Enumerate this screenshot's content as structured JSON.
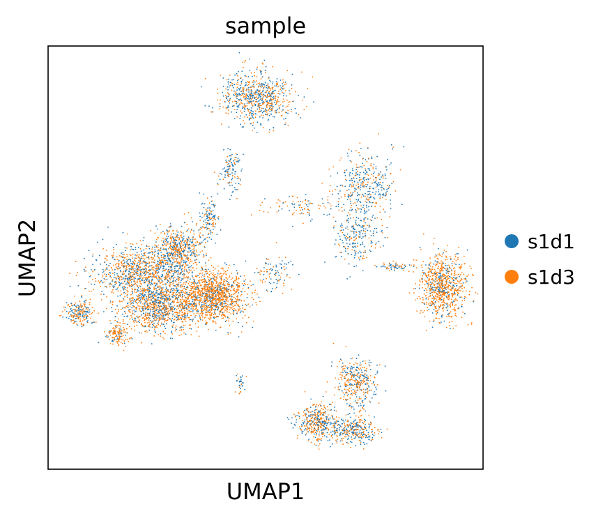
{
  "chart_data": {
    "type": "scatter",
    "title": "sample",
    "xlabel": "UMAP1",
    "ylabel": "UMAP2",
    "xticks": [],
    "yticks": [],
    "grid": false,
    "legend_position": "right",
    "series": [
      {
        "name": "s1d1",
        "color": "#1f77b4"
      },
      {
        "name": "s1d3",
        "color": "#ff7f0e"
      }
    ],
    "clusters": [
      {
        "cx": 0.48,
        "cy": 0.88,
        "rx": 0.075,
        "ry": 0.055,
        "n": 700,
        "mix": 0.55
      },
      {
        "cx": 0.42,
        "cy": 0.71,
        "rx": 0.025,
        "ry": 0.05,
        "n": 120,
        "mix": 0.7
      },
      {
        "cx": 0.73,
        "cy": 0.67,
        "rx": 0.065,
        "ry": 0.07,
        "n": 360,
        "mix": 0.6
      },
      {
        "cx": 0.71,
        "cy": 0.55,
        "rx": 0.045,
        "ry": 0.06,
        "n": 220,
        "mix": 0.7
      },
      {
        "cx": 0.58,
        "cy": 0.62,
        "rx": 0.08,
        "ry": 0.03,
        "n": 90,
        "mix": 0.4
      },
      {
        "cx": 0.37,
        "cy": 0.59,
        "rx": 0.02,
        "ry": 0.04,
        "n": 130,
        "mix": 0.65
      },
      {
        "cx": 0.3,
        "cy": 0.52,
        "rx": 0.055,
        "ry": 0.05,
        "n": 500,
        "mix": 0.45
      },
      {
        "cx": 0.22,
        "cy": 0.46,
        "rx": 0.1,
        "ry": 0.06,
        "n": 1100,
        "mix": 0.45
      },
      {
        "cx": 0.38,
        "cy": 0.41,
        "rx": 0.07,
        "ry": 0.055,
        "n": 1200,
        "mix": 0.25
      },
      {
        "cx": 0.26,
        "cy": 0.38,
        "rx": 0.08,
        "ry": 0.05,
        "n": 900,
        "mix": 0.4
      },
      {
        "cx": 0.07,
        "cy": 0.37,
        "rx": 0.03,
        "ry": 0.025,
        "n": 200,
        "mix": 0.4
      },
      {
        "cx": 0.16,
        "cy": 0.32,
        "rx": 0.025,
        "ry": 0.025,
        "n": 140,
        "mix": 0.2
      },
      {
        "cx": 0.91,
        "cy": 0.43,
        "rx": 0.05,
        "ry": 0.07,
        "n": 800,
        "mix": 0.25
      },
      {
        "cx": 0.8,
        "cy": 0.48,
        "rx": 0.04,
        "ry": 0.01,
        "n": 60,
        "mix": 0.6
      },
      {
        "cx": 0.71,
        "cy": 0.2,
        "rx": 0.045,
        "ry": 0.055,
        "n": 350,
        "mix": 0.45
      },
      {
        "cx": 0.62,
        "cy": 0.11,
        "rx": 0.045,
        "ry": 0.04,
        "n": 380,
        "mix": 0.45
      },
      {
        "cx": 0.7,
        "cy": 0.09,
        "rx": 0.05,
        "ry": 0.03,
        "n": 300,
        "mix": 0.55
      },
      {
        "cx": 0.44,
        "cy": 0.2,
        "rx": 0.01,
        "ry": 0.02,
        "n": 30,
        "mix": 0.6
      },
      {
        "cx": 0.52,
        "cy": 0.46,
        "rx": 0.04,
        "ry": 0.04,
        "n": 90,
        "mix": 0.6
      }
    ]
  }
}
